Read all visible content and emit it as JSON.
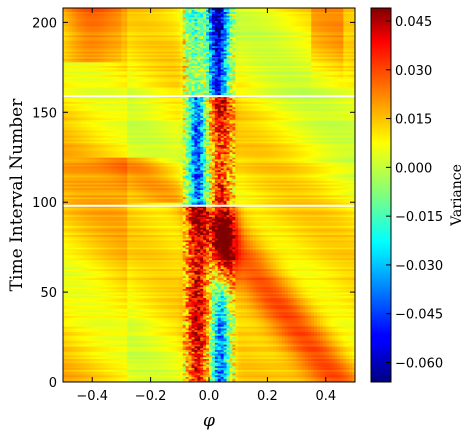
{
  "chart_data": {
    "type": "heatmap",
    "title": "",
    "xlabel": "φ",
    "ylabel": "Time Interval Number",
    "xlim": [
      -0.5,
      0.5
    ],
    "ylim": [
      0,
      208
    ],
    "x_ticks": [
      -0.4,
      -0.2,
      0.0,
      0.2,
      0.4
    ],
    "x_tick_labels": [
      "−0.4",
      "−0.2",
      "0.0",
      "0.2",
      "0.4"
    ],
    "y_ticks": [
      0,
      50,
      100,
      150,
      200
    ],
    "y_tick_labels": [
      "0",
      "50",
      "100",
      "150",
      "200"
    ],
    "horizontal_lines_at": [
      98,
      159
    ],
    "colorbar": {
      "label": "Variance",
      "colormap": "jet",
      "vmin": -0.066,
      "vmax": 0.049,
      "ticks": [
        0.045,
        0.03,
        0.015,
        0.0,
        -0.015,
        -0.03,
        -0.045,
        -0.06
      ],
      "tick_labels": [
        "0.045",
        "0.030",
        "0.015",
        "0.000",
        "−0.015",
        "−0.030",
        "−0.045",
        "−0.060"
      ]
    },
    "grid": false
  }
}
